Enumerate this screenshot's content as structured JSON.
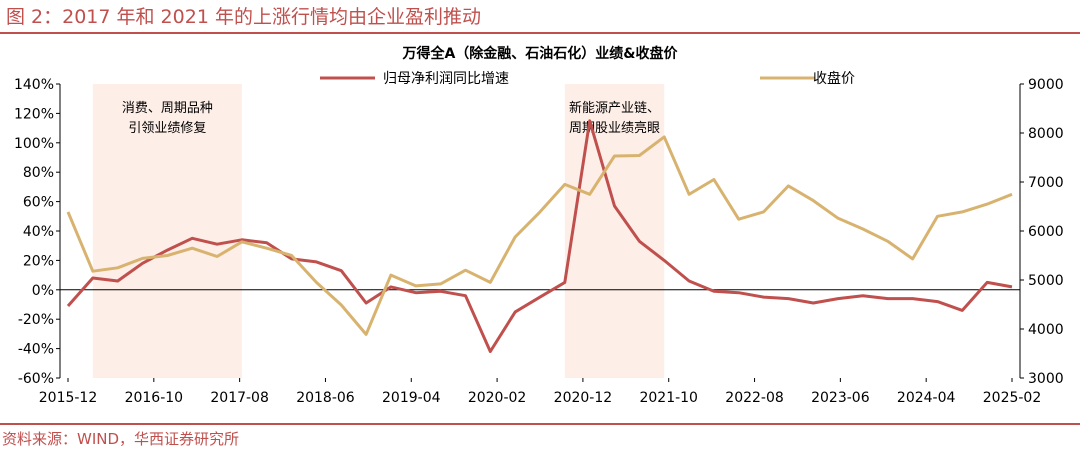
{
  "figure_title": "图 2：2017 年和 2021 年的上涨行情均由企业盈利推动",
  "source_note": "资料来源：WIND，华西证券研究所",
  "colors": {
    "profit_line": "#c0504d",
    "price_line": "#d8b36f",
    "shade": "#fdeee8",
    "accent": "#c0504d"
  },
  "chart_data": {
    "type": "line",
    "title": "万得全A（除金融、石油石化）业绩&收盘价",
    "x": [
      "2015-12",
      "2016-03",
      "2016-06",
      "2016-09",
      "2016-12",
      "2017-03",
      "2017-06",
      "2017-09",
      "2017-12",
      "2018-03",
      "2018-06",
      "2018-09",
      "2018-12",
      "2019-03",
      "2019-06",
      "2019-09",
      "2019-12",
      "2020-03",
      "2020-06",
      "2020-09",
      "2020-12",
      "2021-03",
      "2021-06",
      "2021-09",
      "2021-12",
      "2022-03",
      "2022-06",
      "2022-09",
      "2022-12",
      "2023-03",
      "2023-06",
      "2023-09",
      "2023-12",
      "2024-03",
      "2024-06",
      "2024-09",
      "2024-12",
      "2025-03",
      "2025-06"
    ],
    "x_tick_labels": [
      "2015-12",
      "2016-10",
      "2017-08",
      "2018-06",
      "2019-04",
      "2020-02",
      "2020-12",
      "2021-10",
      "2022-08",
      "2023-06",
      "2024-04",
      "2025-02"
    ],
    "y_left": {
      "min": -60,
      "max": 140,
      "step": 20,
      "tick_labels": [
        "-60%",
        "-40%",
        "-20%",
        "0%",
        "20%",
        "40%",
        "60%",
        "80%",
        "100%",
        "120%",
        "140%"
      ]
    },
    "y_right": {
      "min": 3000,
      "max": 9000,
      "step": 1000,
      "tick_labels": [
        "3000",
        "4000",
        "5000",
        "6000",
        "7000",
        "8000",
        "9000"
      ]
    },
    "series": [
      {
        "name": "归母净利润同比增速",
        "axis": "left",
        "values": [
          -11,
          8,
          6,
          18,
          27,
          35,
          31,
          34,
          32,
          21,
          19,
          13,
          -9,
          2,
          -2,
          -1,
          -4,
          -42,
          -15,
          -5,
          5,
          115,
          57,
          33,
          20,
          6,
          -1,
          -2,
          -5,
          -6,
          -9,
          -6,
          -4,
          -6,
          -6,
          -8,
          -14,
          5,
          2
        ]
      },
      {
        "name": "收盘价",
        "axis": "right",
        "values": [
          6390,
          5180,
          5250,
          5440,
          5500,
          5650,
          5480,
          5780,
          5650,
          5500,
          4950,
          4490,
          3890,
          5100,
          4880,
          4920,
          5200,
          4950,
          5880,
          6390,
          6950,
          6750,
          7530,
          7540,
          7920,
          6750,
          7050,
          6240,
          6390,
          6920,
          6620,
          6260,
          6040,
          5790,
          5430,
          6300,
          6390,
          6550,
          6750
        ]
      }
    ],
    "shaded_periods": [
      {
        "start": "2016-03",
        "end": "2017-09",
        "label": [
          "消费、周期品种",
          "引领业绩修复"
        ]
      },
      {
        "start": "2020-12",
        "end": "2021-12",
        "label": [
          "新能源产业链、",
          "周期股业绩亮眼"
        ]
      }
    ],
    "legend_position": "top-center"
  }
}
